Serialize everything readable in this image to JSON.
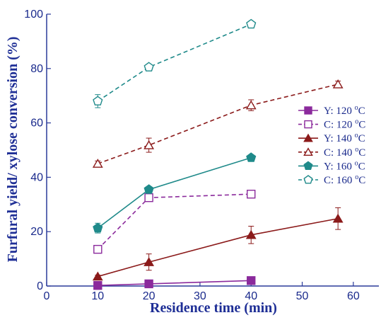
{
  "chart_data": {
    "type": "line",
    "xlabel": "Residence time (min)",
    "ylabel": "Furfural yield/ xylose conversion (%)",
    "xlim": [
      0,
      65
    ],
    "ylim": [
      0,
      100
    ],
    "xticks": [
      0,
      10,
      20,
      30,
      40,
      50,
      60
    ],
    "yticks": [
      0,
      20,
      40,
      60,
      80,
      100
    ],
    "legend_position": "right",
    "series": [
      {
        "name": "Y: 120 °C",
        "label_main": "Y: 120 ",
        "label_sup": "o",
        "label_unit": "C",
        "color": "#8b2a9c",
        "dashed": false,
        "marker": "square",
        "filled": true,
        "x": [
          10,
          20,
          40
        ],
        "y": [
          0.2,
          0.8,
          2.0
        ],
        "err": [
          0,
          0,
          0
        ]
      },
      {
        "name": "C: 120 °C",
        "label_main": "C: 120 ",
        "label_sup": "o",
        "label_unit": "C",
        "color": "#8b2a9c",
        "dashed": true,
        "marker": "square",
        "filled": false,
        "x": [
          10,
          20,
          40
        ],
        "y": [
          13.5,
          32.5,
          33.8
        ],
        "err": [
          0,
          1.0,
          0.6
        ]
      },
      {
        "name": "Y: 140 °C",
        "label_main": "Y: 140 ",
        "label_sup": "o",
        "label_unit": "C",
        "color": "#8b1a1a",
        "dashed": false,
        "marker": "triangle",
        "filled": true,
        "x": [
          10,
          20,
          40,
          57
        ],
        "y": [
          3.5,
          8.8,
          18.8,
          24.8
        ],
        "err": [
          0.5,
          3.0,
          3.2,
          4.0
        ]
      },
      {
        "name": "C: 140 °C",
        "label_main": "C: 140 ",
        "label_sup": "o",
        "label_unit": "C",
        "color": "#8b1a1a",
        "dashed": true,
        "marker": "triangle",
        "filled": false,
        "x": [
          10,
          20,
          40,
          57
        ],
        "y": [
          45.0,
          51.8,
          66.5,
          74.2
        ],
        "err": [
          1.0,
          2.6,
          2.0,
          1.2
        ]
      },
      {
        "name": "Y: 160 °C",
        "label_main": "Y: 160 ",
        "label_sup": "o",
        "label_unit": "C",
        "color": "#1f8a8a",
        "dashed": false,
        "marker": "pentagon",
        "filled": true,
        "x": [
          10,
          20,
          40
        ],
        "y": [
          21.3,
          35.5,
          47.2
        ],
        "err": [
          1.8,
          1.0,
          0.5
        ]
      },
      {
        "name": "C: 160 °C",
        "label_main": "C: 160 ",
        "label_sup": "o",
        "label_unit": "C",
        "color": "#1f8a8a",
        "dashed": true,
        "marker": "pentagon",
        "filled": false,
        "x": [
          10,
          20,
          40
        ],
        "y": [
          68.0,
          80.5,
          96.3
        ],
        "err": [
          2.4,
          0.5,
          0.5
        ]
      }
    ]
  }
}
